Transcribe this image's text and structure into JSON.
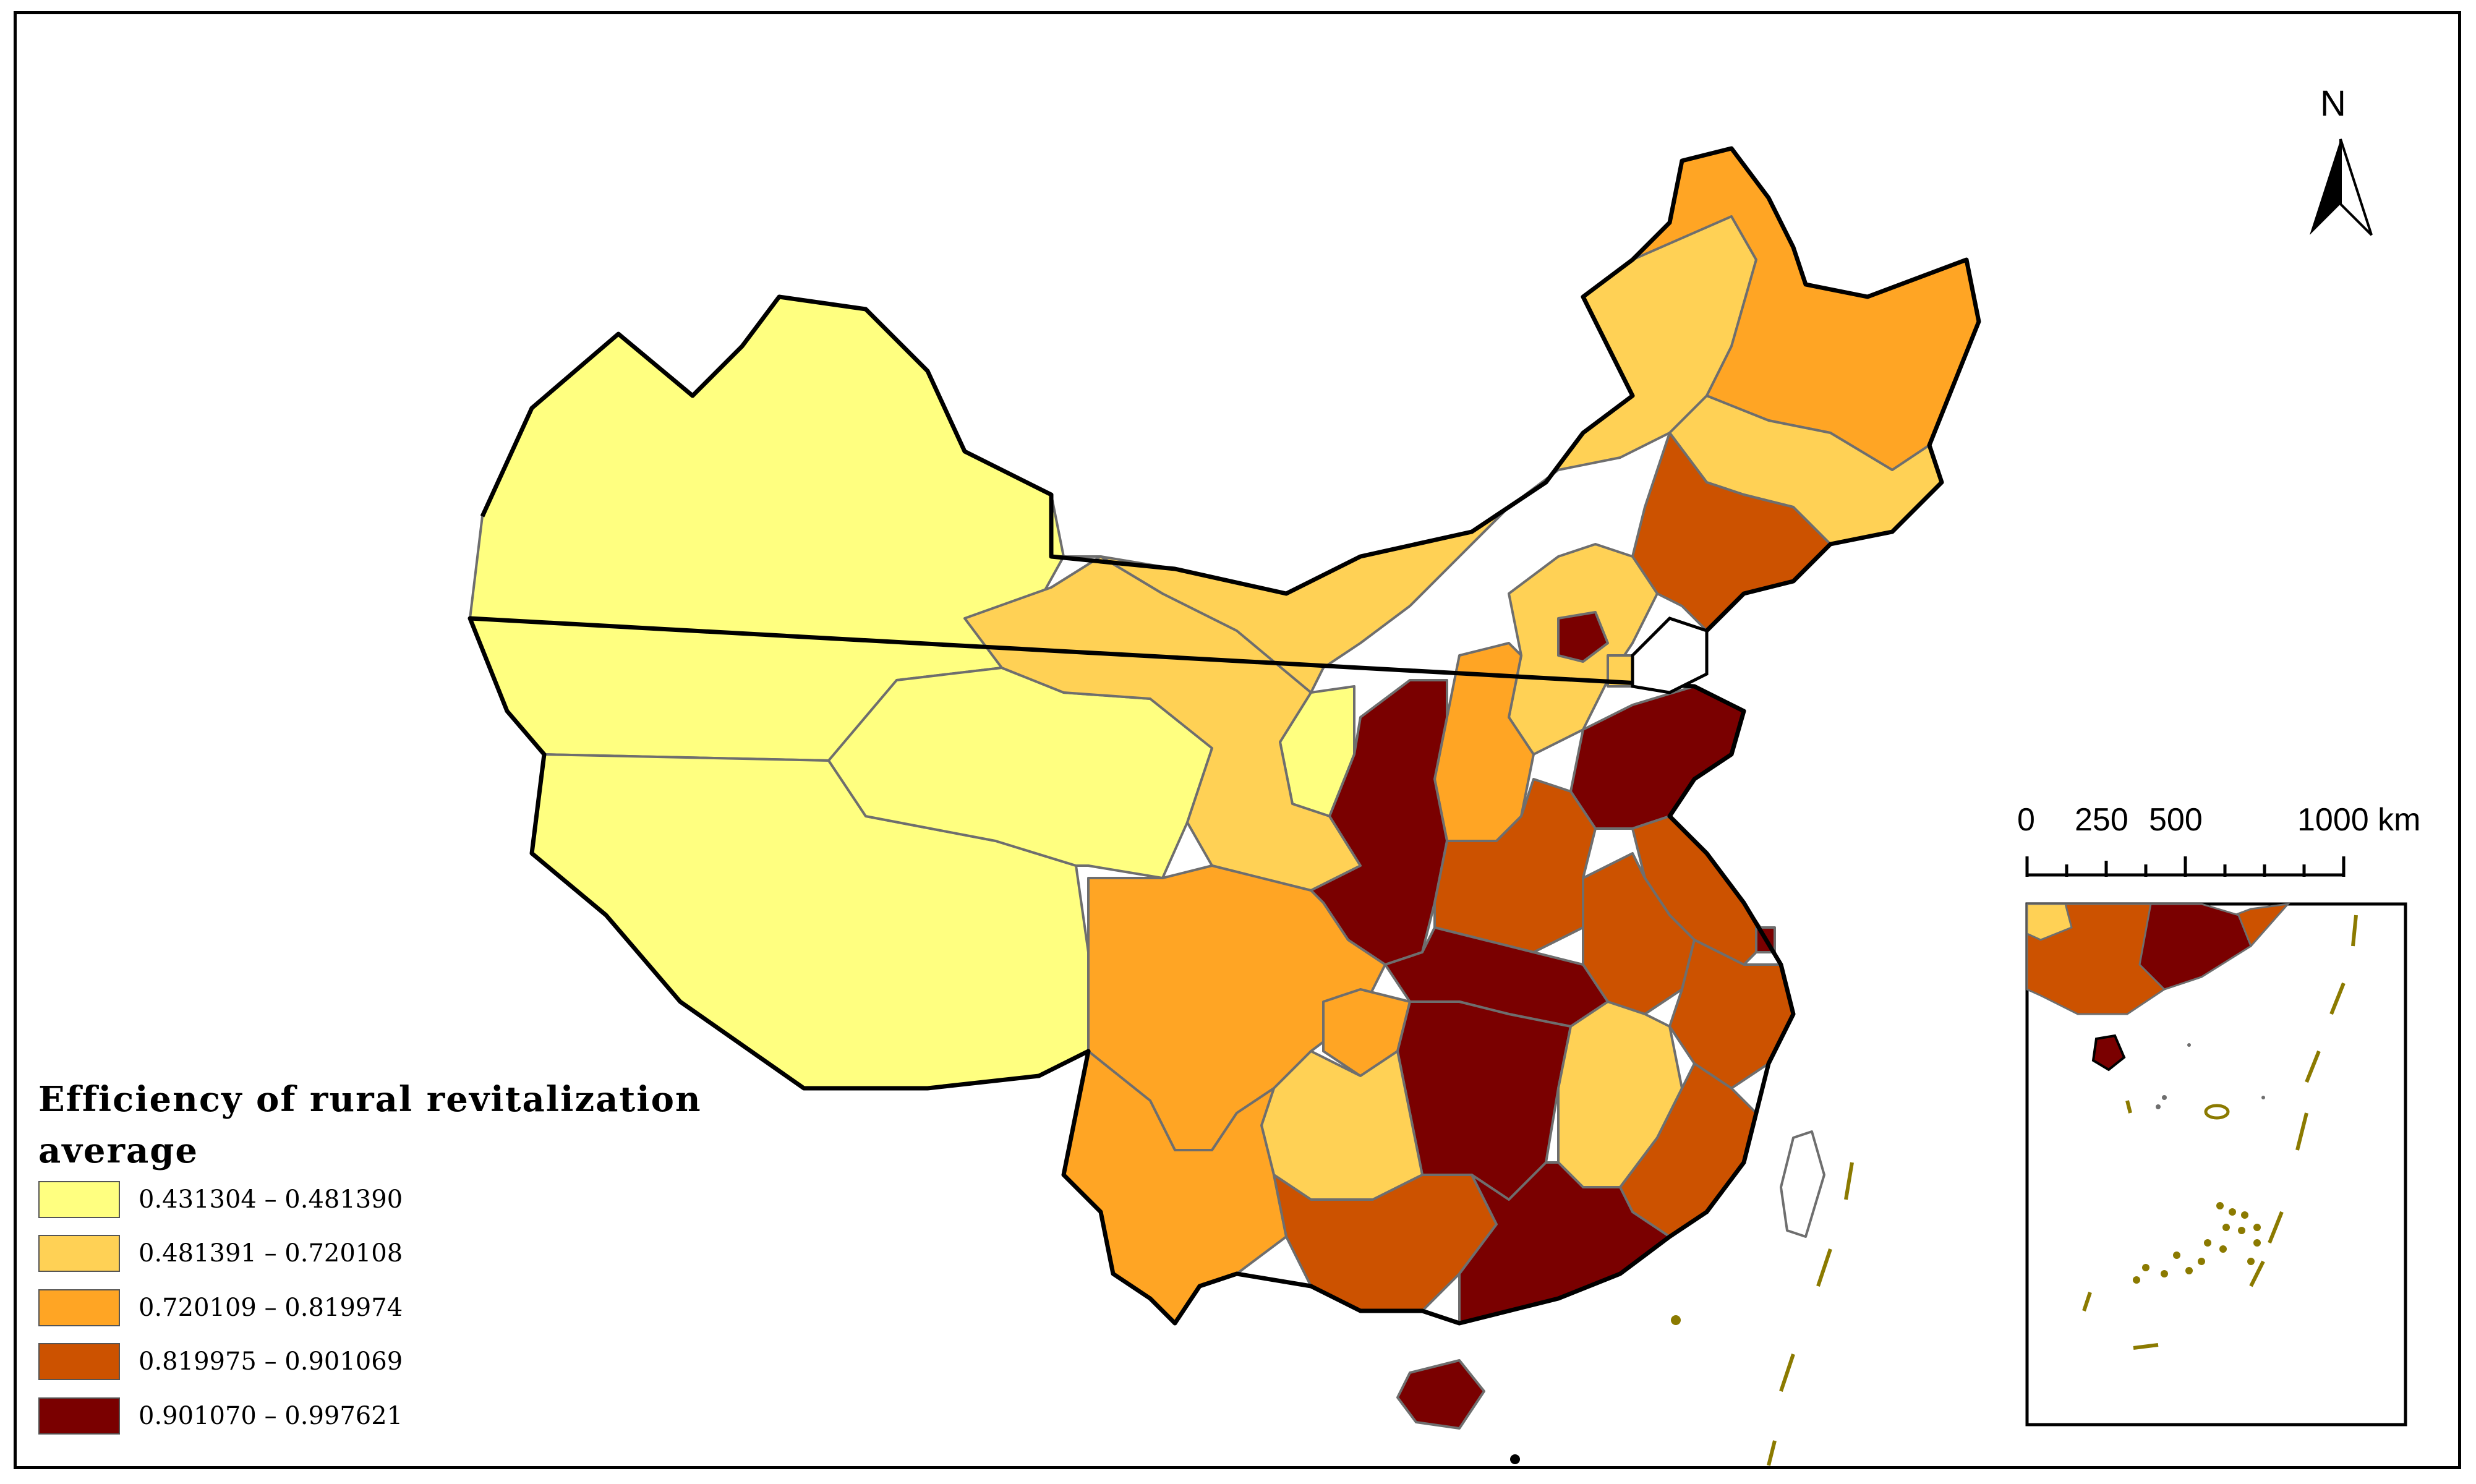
{
  "legend": {
    "title_line1": "Efficiency of rural revitalization",
    "title_line2": "average",
    "classes": [
      {
        "range": "0.431304  –  0.481390",
        "color": "#FFFF80"
      },
      {
        "range": "0.481391  –  0.720108",
        "color": "#FFD155"
      },
      {
        "range": "0.720109  –  0.819974",
        "color": "#FFA524"
      },
      {
        "range": "0.819975  –  0.901069",
        "color": "#CC5200"
      },
      {
        "range": "0.901070  –  0.997621",
        "color": "#7A0000"
      }
    ]
  },
  "north_arrow": {
    "label": "N"
  },
  "scale_bar": {
    "labels": [
      "0",
      "250",
      "500",
      "1000 km"
    ]
  },
  "colors": {
    "border": "#000000",
    "inner_border": "#6e6e6e",
    "islands": "#8B7A00"
  }
}
